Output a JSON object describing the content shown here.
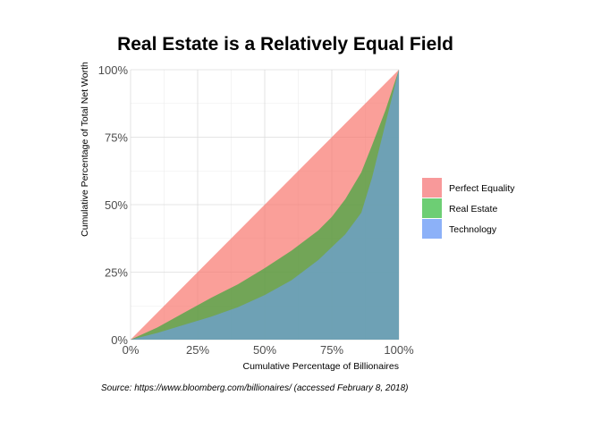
{
  "chart_data": {
    "type": "area",
    "title": "Real Estate is a Relatively Equal Field",
    "xlabel": "Cumulative Percentage of Billionaires",
    "ylabel": "Cumulative Percentage of Total Net Worth",
    "caption": "Source: https://www.bloomberg.com/billionaires/ (accessed February 8, 2018)",
    "xlim": [
      0,
      1
    ],
    "ylim": [
      0,
      1
    ],
    "x_ticks": [
      0,
      0.25,
      0.5,
      0.75,
      1
    ],
    "x_tick_labels": [
      "0%",
      "25%",
      "50%",
      "75%",
      "100%"
    ],
    "y_ticks": [
      0,
      0.25,
      0.5,
      0.75,
      1
    ],
    "y_tick_labels": [
      "0%",
      "25%",
      "50%",
      "75%",
      "100%"
    ],
    "grid": true,
    "legend_position": "right",
    "series": [
      {
        "name": "Perfect Equality",
        "color": "#f8766d",
        "x": [
          0,
          1
        ],
        "y": [
          0,
          1
        ]
      },
      {
        "name": "Real Estate",
        "color": "#38a83a",
        "x": [
          0,
          0.1,
          0.2,
          0.3,
          0.4,
          0.5,
          0.6,
          0.7,
          0.75,
          0.8,
          0.86,
          0.9,
          0.95,
          1
        ],
        "y": [
          0,
          0.045,
          0.1,
          0.155,
          0.205,
          0.265,
          0.33,
          0.405,
          0.455,
          0.52,
          0.62,
          0.72,
          0.85,
          1
        ]
      },
      {
        "name": "Technology",
        "color": "#6c9fdd",
        "x": [
          0,
          0.1,
          0.2,
          0.3,
          0.4,
          0.5,
          0.6,
          0.7,
          0.8,
          0.86,
          0.9,
          0.95,
          1
        ],
        "y": [
          0,
          0.025,
          0.055,
          0.085,
          0.12,
          0.165,
          0.22,
          0.295,
          0.39,
          0.47,
          0.6,
          0.8,
          1
        ]
      }
    ],
    "legend": [
      {
        "name": "Perfect Equality",
        "color": "#f8999a"
      },
      {
        "name": "Real Estate",
        "color": "#6dce74"
      },
      {
        "name": "Technology",
        "color": "#8cb1f8"
      }
    ]
  }
}
